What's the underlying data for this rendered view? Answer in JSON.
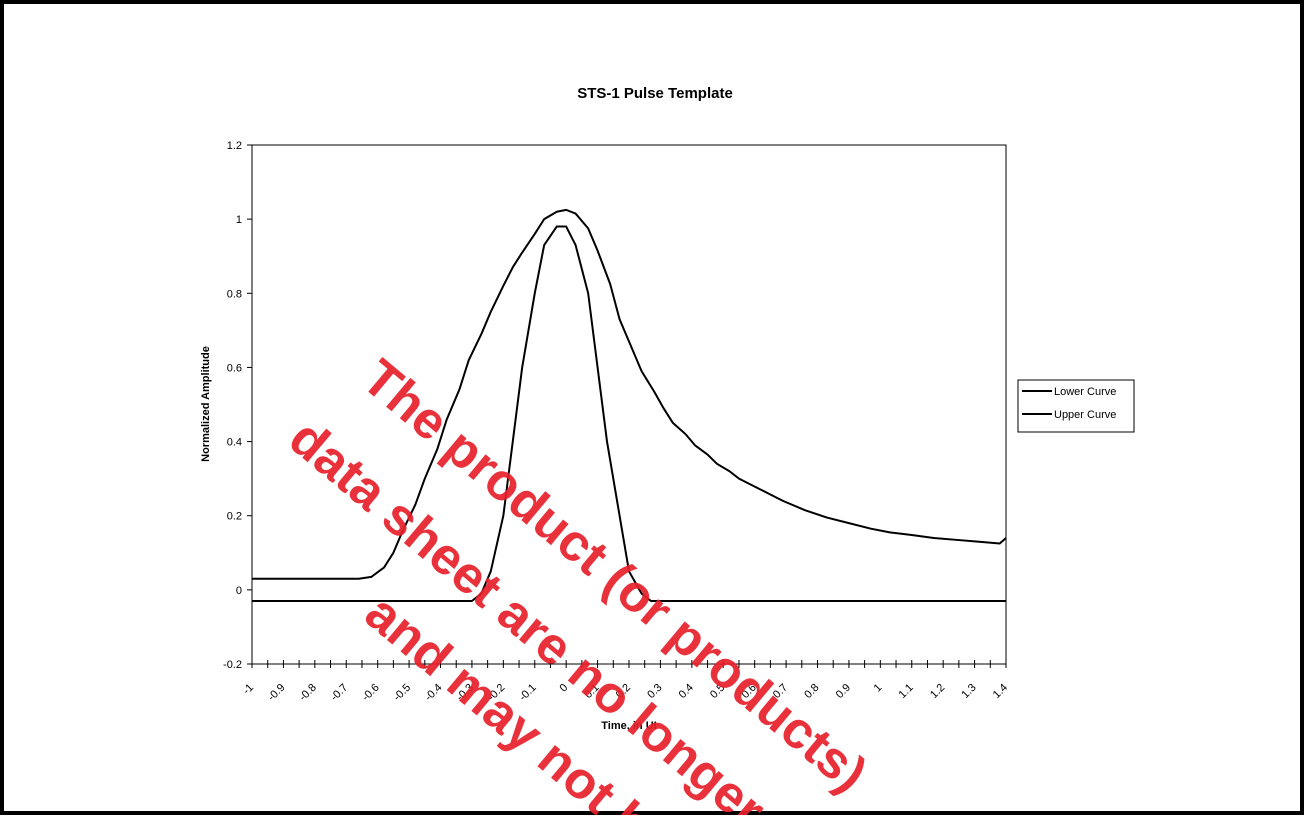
{
  "chart_data": {
    "type": "line",
    "title": "STS-1 Pulse Template",
    "xlabel": "Time, in UI",
    "ylabel": "Normalized Amplitude",
    "xlim": [
      -1,
      1.4
    ],
    "ylim": [
      -0.2,
      1.2
    ],
    "x_ticks": [
      "-1",
      "-0.9",
      "-0.8",
      "-0.7",
      "-0.6",
      "-0.5",
      "-0.4",
      "-0.3",
      "-0.2",
      "-0.1",
      "0",
      "0.1",
      "0.2",
      "0.3",
      "0.4",
      "0.5",
      "0.6",
      "0.7",
      "0.8",
      "0.9",
      "1",
      "1.1",
      "1.2",
      "1.3",
      "1.4"
    ],
    "y_ticks": [
      "-0.2",
      "0",
      "0.2",
      "0.4",
      "0.6",
      "0.8",
      "1",
      "1.2"
    ],
    "grid": false,
    "legend_position": "right",
    "series": [
      {
        "name": "Lower Curve",
        "color": "#000000",
        "x": [
          -1,
          -0.9,
          -0.8,
          -0.7,
          -0.6,
          -0.5,
          -0.4,
          -0.37,
          -0.34,
          -0.3,
          -0.27,
          -0.24,
          -0.2,
          -0.17,
          -0.14,
          -0.1,
          -0.07,
          -0.03,
          0,
          0.03,
          0.07,
          0.1,
          0.13,
          0.17,
          0.2,
          0.24,
          0.27,
          0.3,
          0.34,
          0.37,
          0.4,
          0.5,
          0.6,
          0.7,
          0.8,
          0.9,
          1,
          1.1,
          1.2,
          1.3,
          1.4
        ],
        "y": [
          -0.03,
          -0.03,
          -0.03,
          -0.03,
          -0.03,
          -0.03,
          -0.03,
          -0.03,
          -0.03,
          -0.03,
          -0.01,
          0.05,
          0.2,
          0.4,
          0.6,
          0.8,
          0.93,
          0.98,
          0.98,
          0.93,
          0.8,
          0.6,
          0.4,
          0.2,
          0.05,
          -0.01,
          -0.03,
          -0.03,
          -0.03,
          -0.03,
          -0.03,
          -0.03,
          -0.03,
          -0.03,
          -0.03,
          -0.03,
          -0.03,
          -0.03,
          -0.03,
          -0.03,
          -0.03
        ]
      },
      {
        "name": "Upper Curve",
        "color": "#000000",
        "x": [
          -1,
          -0.9,
          -0.8,
          -0.7,
          -0.66,
          -0.62,
          -0.58,
          -0.55,
          -0.52,
          -0.48,
          -0.45,
          -0.41,
          -0.38,
          -0.34,
          -0.31,
          -0.27,
          -0.24,
          -0.2,
          -0.17,
          -0.14,
          -0.1,
          -0.07,
          -0.03,
          0,
          0.03,
          0.07,
          0.1,
          0.14,
          0.17,
          0.21,
          0.24,
          0.28,
          0.31,
          0.34,
          0.38,
          0.41,
          0.45,
          0.48,
          0.52,
          0.55,
          0.62,
          0.69,
          0.76,
          0.83,
          0.9,
          0.97,
          1.03,
          1.1,
          1.17,
          1.24,
          1.31,
          1.38,
          1.4
        ],
        "y": [
          0.03,
          0.03,
          0.03,
          0.03,
          0.03,
          0.035,
          0.06,
          0.1,
          0.16,
          0.23,
          0.3,
          0.38,
          0.46,
          0.54,
          0.62,
          0.69,
          0.75,
          0.82,
          0.87,
          0.91,
          0.96,
          1.0,
          1.02,
          1.025,
          1.015,
          0.975,
          0.915,
          0.825,
          0.73,
          0.65,
          0.59,
          0.535,
          0.49,
          0.45,
          0.42,
          0.39,
          0.365,
          0.34,
          0.32,
          0.3,
          0.27,
          0.24,
          0.215,
          0.195,
          0.18,
          0.165,
          0.155,
          0.148,
          0.14,
          0.135,
          0.13,
          0.125,
          0.14
        ]
      }
    ]
  },
  "watermark": {
    "line1": "The product (or products)",
    "line2": "data sheet are no longer",
    "line3": "and may not b"
  }
}
